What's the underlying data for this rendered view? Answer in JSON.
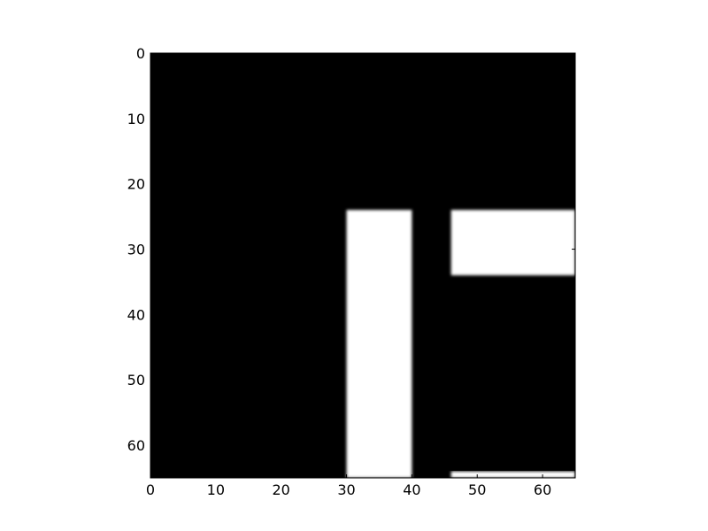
{
  "chart_data": {
    "type": "heatmap",
    "title": "",
    "xlabel": "",
    "ylabel": "",
    "xlim": [
      0,
      65
    ],
    "ylim": [
      65,
      0
    ],
    "x_ticks": [
      "0",
      "10",
      "20",
      "30",
      "40",
      "50",
      "60"
    ],
    "y_ticks": [
      "0",
      "10",
      "20",
      "30",
      "40",
      "50",
      "60"
    ],
    "colormap": "gray",
    "background_value": 0,
    "background_color": "#000000",
    "regions": [
      {
        "name": "vertical-bar",
        "x0": 30,
        "x1": 40,
        "y0": 24,
        "y1": 65,
        "value": 1,
        "color": "#ffffff"
      },
      {
        "name": "horizontal-bar-top",
        "x0": 46,
        "x1": 65,
        "y0": 24,
        "y1": 34,
        "value": 1,
        "color": "#ffffff"
      },
      {
        "name": "horizontal-bar-bottom",
        "x0": 46,
        "x1": 65,
        "y0": 64,
        "y1": 65,
        "value": 1,
        "color": "#ffffff"
      }
    ],
    "grid": false,
    "legend": "none"
  }
}
